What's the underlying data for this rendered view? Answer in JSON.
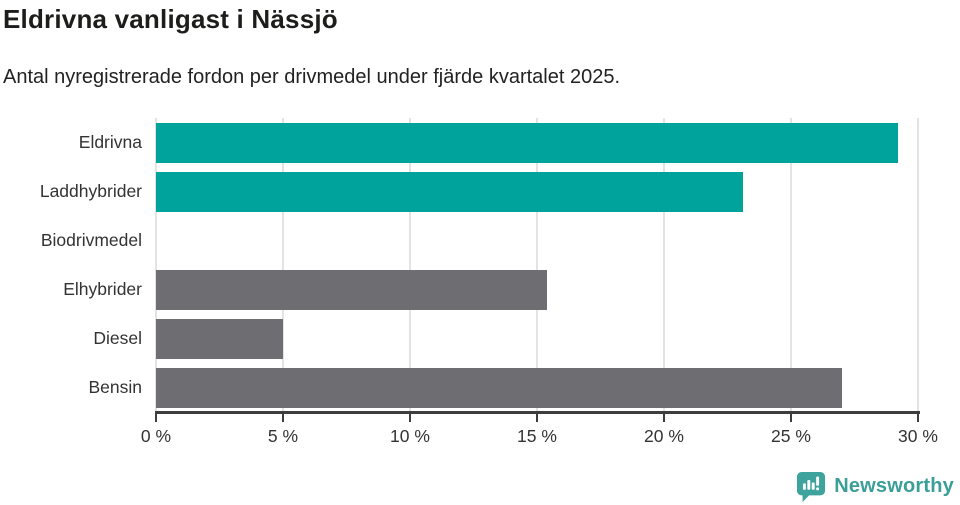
{
  "header": {
    "title": "Eldrivna vanligast i Nässjö",
    "subtitle": "Antal nyregistrerade fordon per drivmedel under fjärde kvartalet 2025."
  },
  "chart_data": {
    "type": "bar",
    "orientation": "horizontal",
    "title": "Eldrivna vanligast i Nässjö",
    "subtitle": "Antal nyregistrerade fordon per drivmedel under fjärde kvartalet 2025.",
    "categories": [
      "Eldrivna",
      "Laddhybrider",
      "Biodrivmedel",
      "Elhybrider",
      "Diesel",
      "Bensin"
    ],
    "values": [
      29.2,
      23.1,
      0,
      15.4,
      5.0,
      27.0
    ],
    "unit": "%",
    "xlim": [
      0,
      30
    ],
    "x_ticks": [
      0,
      5,
      10,
      15,
      20,
      25,
      30
    ],
    "x_tick_labels": [
      "0 %",
      "5 %",
      "10 %",
      "15 %",
      "20 %",
      "25 %",
      "30 %"
    ],
    "bar_colors": [
      "#00a39b",
      "#00a39b",
      "#6e6e72",
      "#6e6e72",
      "#6e6e72",
      "#6e6e72"
    ],
    "accent_color": "#00a39b",
    "neutral_color": "#6e6e72",
    "grid": true,
    "gridline_color": "#e3e3e3",
    "axis_color": "#3d3d3d",
    "legend": "none"
  },
  "footer": {
    "brand": "Newsworthy",
    "brand_color": "#3b9e98",
    "logo_icon": "bar-chart-speech-bubble-icon"
  }
}
